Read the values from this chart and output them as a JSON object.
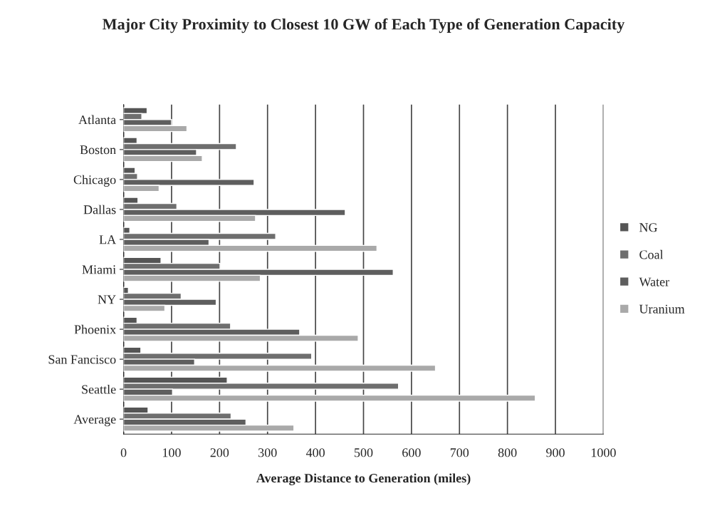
{
  "chart_data": {
    "type": "bar",
    "orientation": "horizontal",
    "title": "Major City Proximity to Closest 10 GW of Each Type of Generation Capacity",
    "xlabel": "Average Distance to Generation (miles)",
    "categories": [
      "Atlanta",
      "Boston",
      "Chicago",
      "Dallas",
      "LA",
      "Miami",
      "NY",
      "Phoenix",
      "San Fancisco",
      "Seattle",
      "Average"
    ],
    "series": [
      {
        "name": "NG",
        "color": "#555555",
        "values": [
          49,
          28,
          24,
          30,
          13,
          78,
          10,
          28,
          36,
          216,
          51
        ]
      },
      {
        "name": "Coal",
        "color": "#6e6e6e",
        "values": [
          38,
          235,
          29,
          111,
          317,
          201,
          120,
          223,
          392,
          573,
          224
        ]
      },
      {
        "name": "Water",
        "color": "#5e5e5e",
        "values": [
          100,
          152,
          272,
          462,
          178,
          562,
          193,
          367,
          148,
          102,
          255
        ]
      },
      {
        "name": "Uranium",
        "color": "#a9a9a9",
        "values": [
          132,
          164,
          74,
          275,
          528,
          285,
          86,
          489,
          650,
          858,
          355
        ]
      }
    ],
    "xlim": [
      0,
      1000
    ],
    "xticks": [
      0,
      100,
      200,
      300,
      400,
      500,
      600,
      700,
      800,
      900,
      1000
    ],
    "grid": "x",
    "legend": "right"
  }
}
